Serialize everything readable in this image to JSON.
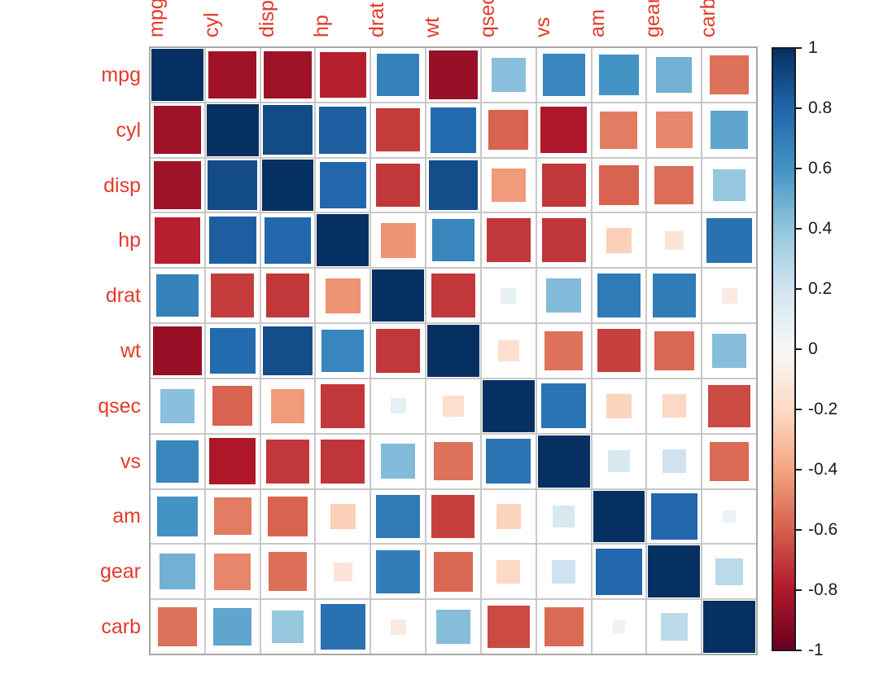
{
  "chart_data": {
    "type": "heatmap",
    "subtype": "correlation-matrix-squares",
    "title": "",
    "variables": [
      "mpg",
      "cyl",
      "disp",
      "hp",
      "drat",
      "wt",
      "qsec",
      "vs",
      "am",
      "gear",
      "carb"
    ],
    "matrix": [
      [
        1.0,
        -0.85,
        -0.85,
        -0.78,
        0.68,
        -0.87,
        0.42,
        0.66,
        0.6,
        0.48,
        -0.55
      ],
      [
        -0.85,
        1.0,
        0.9,
        0.83,
        -0.7,
        0.78,
        -0.59,
        -0.81,
        -0.52,
        -0.49,
        0.53
      ],
      [
        -0.85,
        0.9,
        1.0,
        0.79,
        -0.71,
        0.89,
        -0.43,
        -0.71,
        -0.59,
        -0.56,
        0.39
      ],
      [
        -0.78,
        0.83,
        0.79,
        1.0,
        -0.45,
        0.66,
        -0.71,
        -0.72,
        -0.24,
        -0.13,
        0.75
      ],
      [
        0.68,
        -0.7,
        -0.71,
        -0.45,
        1.0,
        -0.71,
        0.09,
        0.44,
        0.71,
        0.7,
        -0.09
      ],
      [
        -0.87,
        0.78,
        0.89,
        0.66,
        -0.71,
        1.0,
        -0.17,
        -0.55,
        -0.69,
        -0.58,
        0.43
      ],
      [
        0.42,
        -0.59,
        -0.43,
        -0.71,
        0.09,
        -0.17,
        1.0,
        0.74,
        -0.23,
        -0.21,
        -0.66
      ],
      [
        0.66,
        -0.81,
        -0.71,
        -0.72,
        0.44,
        -0.55,
        0.74,
        1.0,
        0.17,
        0.21,
        -0.57
      ],
      [
        0.6,
        -0.52,
        -0.59,
        -0.24,
        0.71,
        -0.69,
        -0.23,
        0.17,
        1.0,
        0.79,
        0.06
      ],
      [
        0.48,
        -0.49,
        -0.56,
        -0.13,
        0.7,
        -0.58,
        -0.21,
        0.21,
        0.79,
        1.0,
        0.27
      ],
      [
        -0.55,
        0.53,
        0.39,
        0.75,
        -0.09,
        0.43,
        -0.66,
        -0.57,
        0.06,
        0.27,
        1.0
      ]
    ],
    "value_range": [
      -1,
      1
    ],
    "size_encoding": "square side proportional to sqrt(abs(r))",
    "palette_stops_neg_to_pos": [
      "#67001F",
      "#B2182B",
      "#D6604D",
      "#F4A582",
      "#FDDBC7",
      "#F7F7F7",
      "#D1E5F0",
      "#92C5DE",
      "#4393C4",
      "#2166AC",
      "#053061"
    ],
    "colorbar": {
      "position": "right",
      "tick_values": [
        1,
        0.8,
        0.6,
        0.4,
        0.2,
        0,
        -0.2,
        -0.4,
        -0.6,
        -0.8,
        -1
      ],
      "tick_labels": [
        "1",
        "0.8",
        "0.6",
        "0.4",
        "0.2",
        "0",
        "-0.2",
        "-0.4",
        "-0.6",
        "-0.8",
        "-1"
      ]
    },
    "colors": {
      "variable_label": "#e43a2b",
      "colorbar_tick_label": "#1a1a1a",
      "grid_line": "#c9c9c9",
      "grid_border": "#a8a8a8",
      "cell_background": "#ffffff",
      "page_background": "#ffffff"
    },
    "legend": "none",
    "grid": "on"
  }
}
